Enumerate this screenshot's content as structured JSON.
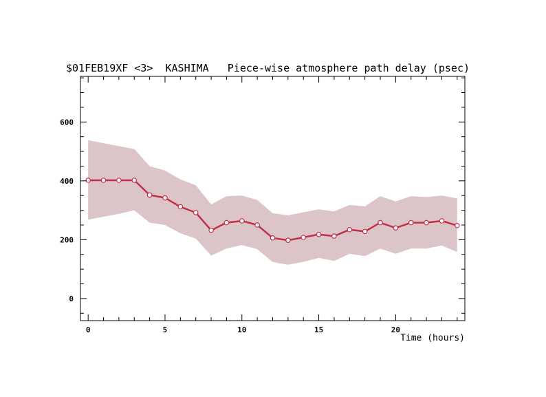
{
  "chart_data": {
    "type": "line",
    "title": "$01FEB19XF <3>  KASHIMA   Piece-wise atmosphere path delay (psec)",
    "xlabel": "Time (hours)",
    "ylabel": "",
    "xlim": [
      -0.5,
      24.5
    ],
    "ylim": [
      -75,
      755
    ],
    "x_ticks": [
      0,
      5,
      10,
      15,
      20
    ],
    "y_ticks": [
      0,
      200,
      400,
      600
    ],
    "grid": false,
    "legend": "none",
    "colors": {
      "line": "#c0304a",
      "band": "#dcc5c8",
      "marker_fill": "#ffffff"
    },
    "series": [
      {
        "x": [
          0,
          1,
          2,
          3,
          4,
          5,
          6,
          7,
          8,
          9,
          10,
          11,
          12,
          13,
          14,
          15,
          16,
          17,
          18,
          19,
          20,
          21,
          22,
          23,
          24
        ],
        "values": [
          402,
          402,
          402,
          402,
          352,
          342,
          312,
          292,
          232,
          258,
          264,
          250,
          206,
          198,
          208,
          218,
          212,
          234,
          228,
          258,
          240,
          258,
          258,
          264,
          248
        ],
        "upper": [
          538,
          528,
          518,
          508,
          450,
          435,
          405,
          385,
          320,
          348,
          350,
          335,
          290,
          283,
          293,
          303,
          296,
          318,
          313,
          348,
          330,
          348,
          345,
          350,
          340
        ],
        "lower": [
          268,
          278,
          288,
          300,
          258,
          250,
          222,
          204,
          146,
          170,
          182,
          168,
          124,
          115,
          125,
          138,
          128,
          152,
          144,
          170,
          152,
          170,
          170,
          180,
          158
        ]
      }
    ]
  }
}
